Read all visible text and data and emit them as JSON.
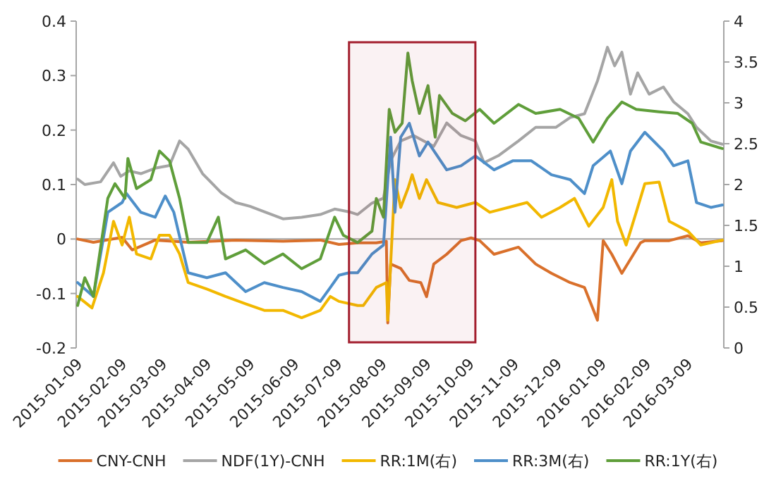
{
  "chart_data": {
    "type": "line",
    "legend": "bottom",
    "xlim": [
      "2015-01-07",
      "2016-04-02"
    ],
    "xticks": [
      "2015-01-09",
      "2015-02-09",
      "2015-03-09",
      "2015-04-09",
      "2015-05-09",
      "2015-06-09",
      "2015-07-09",
      "2015-08-09",
      "2015-09-09",
      "2015-10-09",
      "2015-11-09",
      "2015-12-09",
      "2016-01-09",
      "2016-02-09",
      "2016-03-09"
    ],
    "ylim": [
      -0.2,
      0.4
    ],
    "yticks": [
      -0.2,
      -0.1,
      0,
      0.1,
      0.2,
      0.3,
      0.4
    ],
    "y2lim": [
      0,
      4
    ],
    "y2ticks": [
      0,
      0.5,
      1,
      1.5,
      2,
      2.5,
      3,
      3.5,
      4
    ],
    "ref_lines": [
      {
        "axis": "y",
        "value": 0,
        "color": "#a6a6a6"
      }
    ],
    "bands": [
      {
        "axis": "x",
        "from": "2015-07-16",
        "to": "2015-10-12",
        "color": "#a31f2e"
      }
    ],
    "series": [
      {
        "name": "CNY-CNH",
        "color": "#d9702b",
        "x": [
          "2015-01-08",
          "2015-01-19",
          "2015-02-08",
          "2015-02-15",
          "2015-03-03",
          "2015-03-26",
          "2015-04-28",
          "2015-05-31",
          "2015-06-26",
          "2015-07-09",
          "2015-07-22",
          "2015-08-04",
          "2015-08-11",
          "2015-08-12",
          "2015-08-14",
          "2015-08-21",
          "2015-08-27",
          "2015-09-04",
          "2015-09-08",
          "2015-09-13",
          "2015-09-22",
          "2015-10-02",
          "2015-10-09",
          "2015-10-15",
          "2015-10-25",
          "2015-11-11",
          "2015-11-23",
          "2015-12-04",
          "2015-12-17",
          "2015-12-27",
          "2016-01-05",
          "2016-01-09",
          "2016-01-15",
          "2016-01-22",
          "2016-02-04",
          "2016-02-07",
          "2016-02-24",
          "2016-03-08",
          "2016-03-17",
          "2016-04-01"
        ],
        "values": [
          0,
          -0.006,
          0.003,
          -0.02,
          -0.002,
          -0.006,
          -0.002,
          -0.004,
          -0.002,
          -0.01,
          -0.007,
          -0.007,
          -0.004,
          -0.154,
          -0.046,
          -0.054,
          -0.076,
          -0.08,
          -0.106,
          -0.046,
          -0.028,
          -0.003,
          0.002,
          -0.003,
          -0.028,
          -0.015,
          -0.046,
          -0.063,
          -0.08,
          -0.089,
          -0.149,
          -0.003,
          -0.028,
          -0.063,
          -0.007,
          -0.003,
          -0.003,
          0.006,
          -0.007,
          -0.003
        ]
      },
      {
        "name": "NDF(1Y)-CNH",
        "color": "#a5a5a5",
        "x": [
          "2015-01-08",
          "2015-01-13",
          "2015-01-24",
          "2015-02-02",
          "2015-02-07",
          "2015-02-13",
          "2015-02-21",
          "2015-03-03",
          "2015-03-13",
          "2015-03-20",
          "2015-03-26",
          "2015-04-05",
          "2015-04-18",
          "2015-04-28",
          "2015-05-08",
          "2015-05-18",
          "2015-05-31",
          "2015-06-13",
          "2015-06-26",
          "2015-07-06",
          "2015-07-16",
          "2015-07-22",
          "2015-08-01",
          "2015-08-09",
          "2015-08-14",
          "2015-08-21",
          "2015-08-30",
          "2015-09-13",
          "2015-09-22",
          "2015-10-02",
          "2015-10-12",
          "2015-10-18",
          "2015-10-28",
          "2015-11-11",
          "2015-11-23",
          "2015-12-07",
          "2015-12-17",
          "2015-12-27",
          "2016-01-05",
          "2016-01-12",
          "2016-01-17",
          "2016-01-22",
          "2016-01-28",
          "2016-02-02",
          "2016-02-10",
          "2016-02-20",
          "2016-02-27",
          "2016-03-08",
          "2016-03-14",
          "2016-03-24",
          "2016-04-01"
        ],
        "values": [
          0.11,
          0.1,
          0.105,
          0.14,
          0.115,
          0.125,
          0.12,
          0.13,
          0.135,
          0.18,
          0.165,
          0.12,
          0.085,
          0.067,
          0.06,
          0.05,
          0.037,
          0.04,
          0.045,
          0.055,
          0.05,
          0.045,
          0.066,
          0.075,
          0.144,
          0.18,
          0.19,
          0.17,
          0.213,
          0.19,
          0.18,
          0.14,
          0.153,
          0.18,
          0.205,
          0.205,
          0.223,
          0.23,
          0.29,
          0.352,
          0.318,
          0.343,
          0.266,
          0.305,
          0.266,
          0.279,
          0.252,
          0.23,
          0.205,
          0.18,
          0.174
        ]
      },
      {
        "name": "RR:1M(右)",
        "color": "#f2b800",
        "axis": "y2",
        "x": [
          "2015-01-08",
          "2015-01-18",
          "2015-01-26",
          "2015-02-02",
          "2015-02-08",
          "2015-02-13",
          "2015-02-18",
          "2015-02-28",
          "2015-03-06",
          "2015-03-13",
          "2015-03-20",
          "2015-03-26",
          "2015-04-08",
          "2015-04-21",
          "2015-05-05",
          "2015-05-18",
          "2015-05-31",
          "2015-06-13",
          "2015-06-26",
          "2015-07-03",
          "2015-07-09",
          "2015-07-22",
          "2015-07-26",
          "2015-08-04",
          "2015-08-11",
          "2015-08-12",
          "2015-08-14",
          "2015-08-17",
          "2015-08-21",
          "2015-08-26",
          "2015-08-29",
          "2015-09-03",
          "2015-09-08",
          "2015-09-16",
          "2015-09-29",
          "2015-10-12",
          "2015-10-22",
          "2015-11-04",
          "2015-11-17",
          "2015-11-27",
          "2015-12-10",
          "2015-12-20",
          "2015-12-30",
          "2016-01-09",
          "2016-01-15",
          "2016-01-19",
          "2016-01-25",
          "2016-02-01",
          "2016-02-07",
          "2016-02-17",
          "2016-02-24",
          "2016-03-08",
          "2016-03-17",
          "2016-04-01"
        ],
        "values": [
          0.63,
          0.49,
          0.92,
          1.55,
          1.26,
          1.6,
          1.15,
          1.09,
          1.38,
          1.38,
          1.15,
          0.8,
          0.72,
          0.63,
          0.54,
          0.46,
          0.46,
          0.37,
          0.46,
          0.63,
          0.57,
          0.52,
          0.52,
          0.74,
          0.8,
          0.34,
          1.03,
          2.06,
          1.72,
          1.95,
          2.12,
          1.83,
          2.06,
          1.78,
          1.72,
          1.78,
          1.66,
          1.72,
          1.78,
          1.6,
          1.72,
          1.83,
          1.49,
          1.72,
          2.06,
          1.55,
          1.26,
          1.66,
          2.01,
          2.03,
          1.55,
          1.43,
          1.26,
          1.32
        ]
      },
      {
        "name": "RR:3M(右)",
        "color": "#4e8fc9",
        "axis": "y2",
        "x": [
          "2015-01-08",
          "2015-01-19",
          "2015-01-29",
          "2015-02-08",
          "2015-02-11",
          "2015-02-21",
          "2015-03-03",
          "2015-03-10",
          "2015-03-16",
          "2015-03-26",
          "2015-04-08",
          "2015-04-21",
          "2015-05-05",
          "2015-05-18",
          "2015-05-31",
          "2015-06-13",
          "2015-06-26",
          "2015-07-03",
          "2015-07-09",
          "2015-07-16",
          "2015-07-22",
          "2015-08-01",
          "2015-08-09",
          "2015-08-14",
          "2015-08-17",
          "2015-08-21",
          "2015-08-27",
          "2015-09-03",
          "2015-09-09",
          "2015-09-22",
          "2015-10-02",
          "2015-10-12",
          "2015-10-25",
          "2015-11-07",
          "2015-11-20",
          "2015-12-04",
          "2015-12-17",
          "2015-12-27",
          "2016-01-02",
          "2016-01-14",
          "2016-01-22",
          "2016-01-28",
          "2016-02-07",
          "2016-02-20",
          "2016-02-27",
          "2016-03-08",
          "2016-03-14",
          "2016-03-24",
          "2016-04-01"
        ],
        "values": [
          0.8,
          0.63,
          1.66,
          1.78,
          1.89,
          1.66,
          1.6,
          1.86,
          1.66,
          0.92,
          0.86,
          0.92,
          0.69,
          0.8,
          0.74,
          0.69,
          0.57,
          0.74,
          0.89,
          0.92,
          0.92,
          1.15,
          1.26,
          2.58,
          1.66,
          2.58,
          2.75,
          2.35,
          2.52,
          2.18,
          2.23,
          2.35,
          2.18,
          2.29,
          2.29,
          2.12,
          2.06,
          1.89,
          2.23,
          2.41,
          2.01,
          2.41,
          2.64,
          2.41,
          2.23,
          2.29,
          1.78,
          1.72,
          1.75
        ]
      },
      {
        "name": "RR:1Y(右)",
        "color": "#5f9e3a",
        "axis": "y2",
        "x": [
          "2015-01-08",
          "2015-01-13",
          "2015-01-19",
          "2015-01-29",
          "2015-02-03",
          "2015-02-10",
          "2015-02-12",
          "2015-02-18",
          "2015-02-28",
          "2015-03-06",
          "2015-03-13",
          "2015-03-20",
          "2015-03-26",
          "2015-04-08",
          "2015-04-16",
          "2015-04-21",
          "2015-05-05",
          "2015-05-18",
          "2015-05-31",
          "2015-06-13",
          "2015-06-26",
          "2015-07-06",
          "2015-07-12",
          "2015-07-22",
          "2015-08-01",
          "2015-08-04",
          "2015-08-09",
          "2015-08-13",
          "2015-08-17",
          "2015-08-22",
          "2015-08-26",
          "2015-08-29",
          "2015-09-03",
          "2015-09-09",
          "2015-09-14",
          "2015-09-17",
          "2015-09-26",
          "2015-10-05",
          "2015-10-15",
          "2015-10-25",
          "2015-11-11",
          "2015-11-23",
          "2015-12-10",
          "2015-12-23",
          "2016-01-02",
          "2016-01-12",
          "2016-01-22",
          "2016-02-01",
          "2016-02-17",
          "2016-03-01",
          "2016-03-11",
          "2016-03-17",
          "2016-04-01"
        ],
        "values": [
          0.52,
          0.86,
          0.63,
          1.83,
          2.01,
          1.83,
          2.32,
          1.95,
          2.06,
          2.41,
          2.29,
          1.83,
          1.29,
          1.29,
          1.6,
          1.09,
          1.2,
          1.03,
          1.15,
          0.97,
          1.09,
          1.6,
          1.38,
          1.29,
          1.43,
          1.83,
          1.6,
          2.92,
          2.64,
          2.75,
          3.61,
          3.27,
          2.87,
          3.21,
          2.58,
          3.09,
          2.87,
          2.78,
          2.92,
          2.75,
          2.98,
          2.87,
          2.92,
          2.81,
          2.52,
          2.81,
          3.01,
          2.92,
          2.89,
          2.87,
          2.75,
          2.52,
          2.44
        ]
      }
    ]
  }
}
